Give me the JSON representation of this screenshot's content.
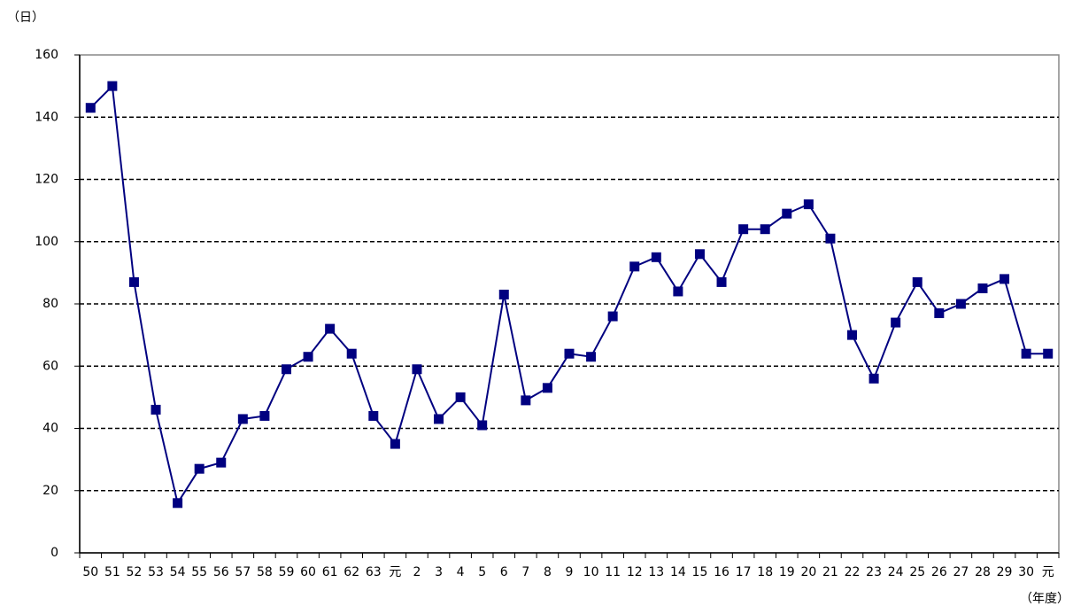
{
  "chart_data": {
    "type": "line",
    "y_label": "（日）",
    "x_label": "（年度）",
    "categories": [
      "50",
      "51",
      "52",
      "53",
      "54",
      "55",
      "56",
      "57",
      "58",
      "59",
      "60",
      "61",
      "62",
      "63",
      "元",
      "2",
      "3",
      "4",
      "5",
      "6",
      "7",
      "8",
      "9",
      "10",
      "11",
      "12",
      "13",
      "14",
      "15",
      "16",
      "17",
      "18",
      "19",
      "20",
      "21",
      "22",
      "23",
      "24",
      "25",
      "26",
      "27",
      "28",
      "29",
      "30",
      "元"
    ],
    "values": [
      143,
      150,
      87,
      46,
      16,
      27,
      29,
      43,
      44,
      59,
      63,
      72,
      64,
      44,
      35,
      59,
      43,
      50,
      41,
      83,
      49,
      53,
      64,
      63,
      76,
      92,
      95,
      84,
      96,
      87,
      104,
      104,
      109,
      112,
      101,
      70,
      56,
      74,
      87,
      77,
      80,
      85,
      88,
      64,
      64
    ],
    "color": "#000080",
    "ylim": [
      0,
      160
    ],
    "yticks": [
      0,
      20,
      40,
      60,
      80,
      100,
      120,
      140,
      160
    ],
    "grid": true
  }
}
